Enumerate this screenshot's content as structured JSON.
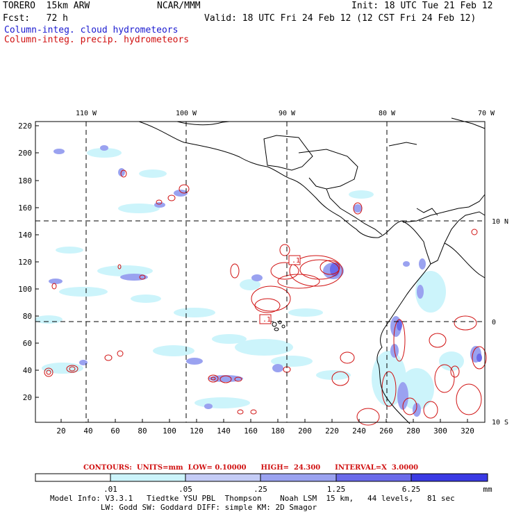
{
  "header": {
    "model": "TORERO  15km ARW",
    "center": "NCAR/MMM",
    "init": "Init: 18 UTC Tue 21 Feb 12",
    "fcst": "Fcst:   72 h",
    "valid": "Valid: 18 UTC Fri 24 Feb 12 (12 CST Fri 24 Feb 12)",
    "field1": "Column-integ. cloud hydrometeors",
    "field2": "Column-integ. precip. hydrometeors"
  },
  "map": {
    "top_lon_labels": [
      "110 W",
      "100 W",
      "90 W",
      "80 W",
      "70 W"
    ],
    "right_lat_labels": [
      "10 N",
      "0",
      "10 S"
    ],
    "left_ticks": [
      "220",
      "200",
      "180",
      "160",
      "140",
      "120",
      "100",
      "80",
      "60",
      "40",
      "20"
    ],
    "bottom_ticks": [
      "20",
      "40",
      "60",
      "80",
      "100",
      "120",
      "140",
      "160",
      "180",
      "200",
      "220",
      "240",
      "260",
      "280",
      "300",
      "320"
    ],
    "contour_labels": [
      ".1",
      ".1"
    ]
  },
  "colorbar": {
    "contour_info": "CONTOURS:  UNITS=mm  LOW= 0.10000      HIGH=  24.300      INTERVAL=X  3.0000",
    "labels": [
      ".01",
      ".05",
      ".25",
      "1.25",
      "6.25"
    ],
    "units": "mm",
    "colors": [
      "#ffffff",
      "#ccf4fb",
      "#c4ccf6",
      "#9aa2f0",
      "#6a6aea",
      "#3a3ae4"
    ]
  },
  "footer": {
    "line1": "Model Info: V3.3.1   Tiedtke YSU PBL  Thompson    Noah LSM  15 km,   44 levels,   81 sec",
    "line2": "           LW: Godd SW: Goddard DIFF: simple KM: 2D Smagor"
  }
}
